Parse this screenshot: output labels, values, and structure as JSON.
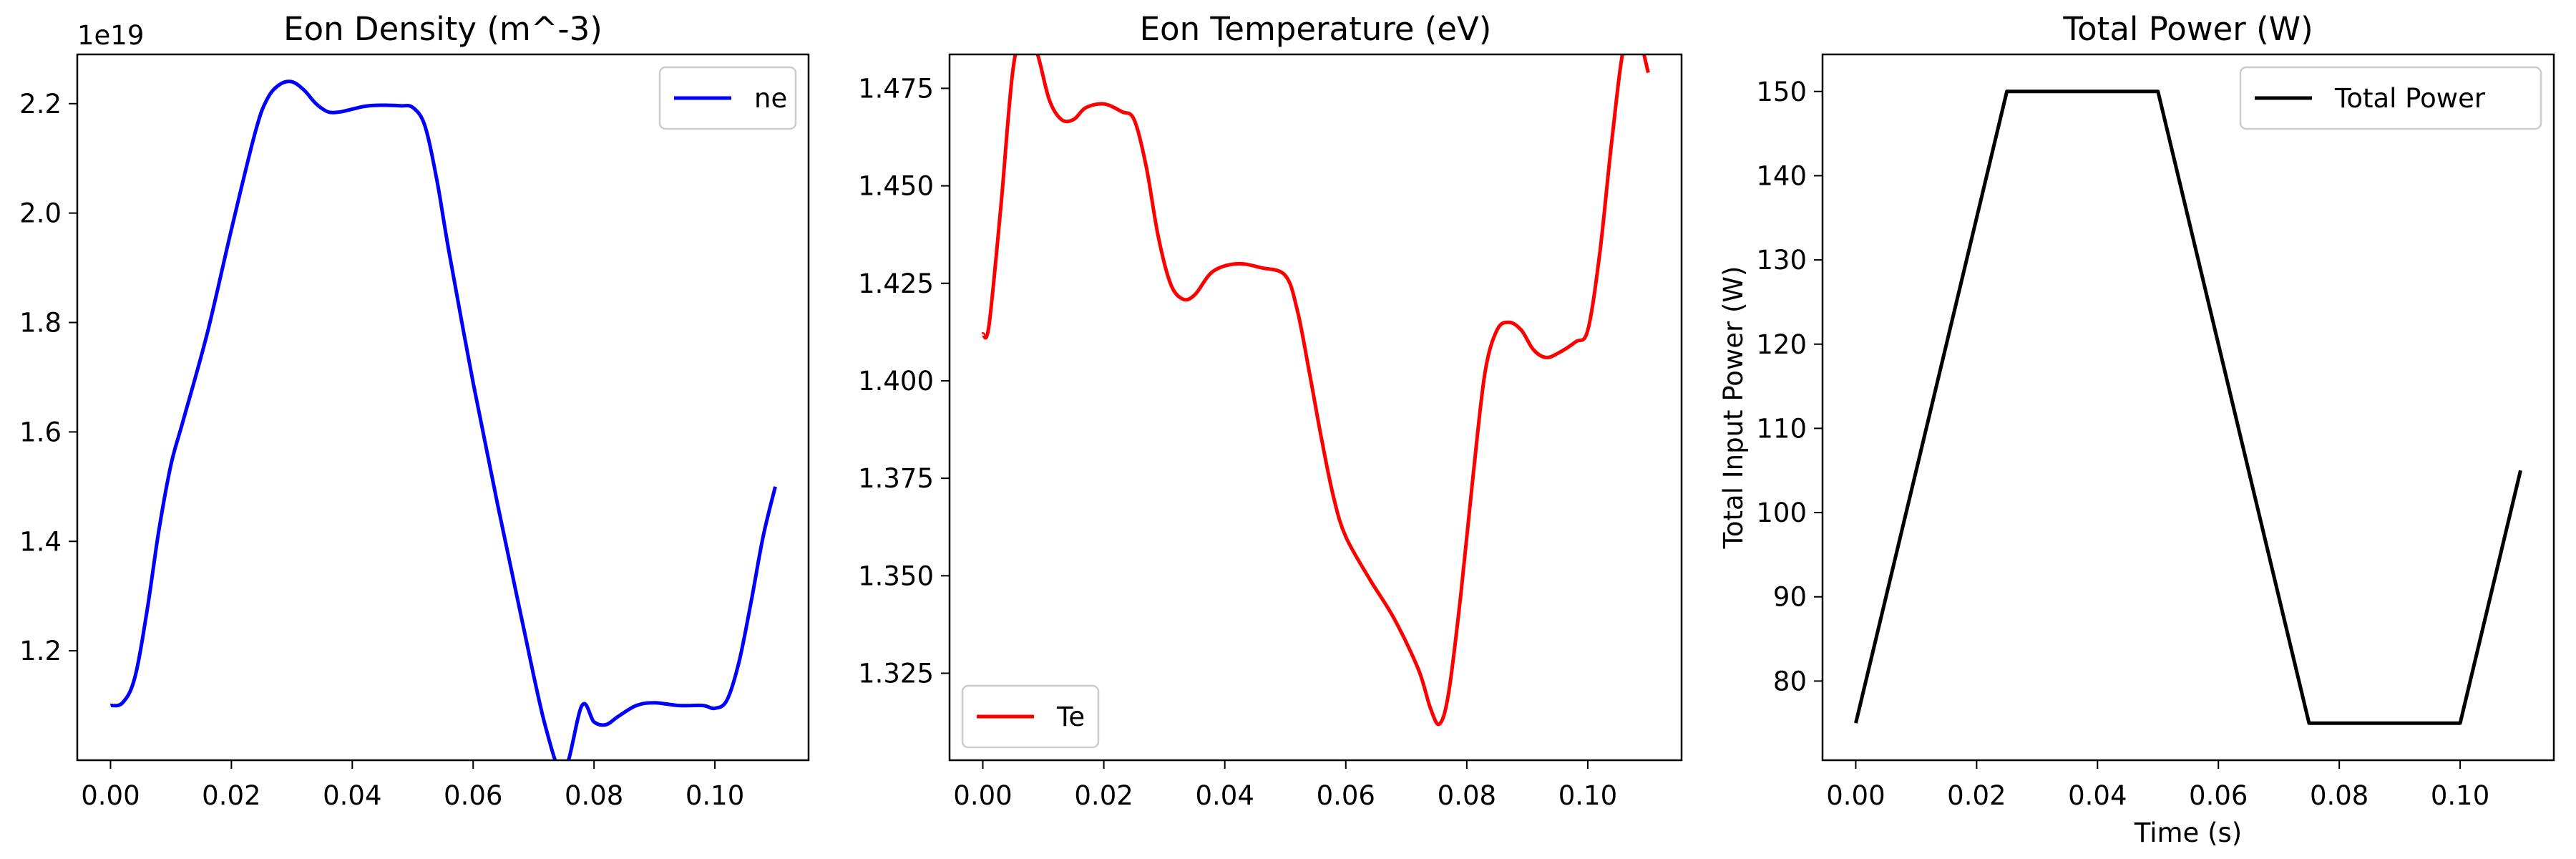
{
  "chart_data": [
    {
      "type": "line",
      "title": "Eon Density (m^-3)",
      "xlabel": "",
      "ylabel": "",
      "offset_text": "1e19",
      "xlim": [
        -0.0055,
        0.1155
      ],
      "ylim": [
        1.0,
        2.29
      ],
      "xticks": [
        0.0,
        0.02,
        0.04,
        0.06,
        0.08,
        0.1
      ],
      "xtick_labels": [
        "0.00",
        "0.02",
        "0.04",
        "0.06",
        "0.08",
        "0.10"
      ],
      "yticks": [
        1.2,
        1.4,
        1.6,
        1.8,
        2.0,
        2.2
      ],
      "ytick_labels": [
        "1.2",
        "1.4",
        "1.6",
        "1.8",
        "2.0",
        "2.2"
      ],
      "legend_position": "upper right",
      "series": [
        {
          "name": "ne",
          "color": "#0000ff",
          "x": [
            0.0,
            0.002,
            0.004,
            0.006,
            0.008,
            0.01,
            0.012,
            0.016,
            0.02,
            0.024,
            0.026,
            0.028,
            0.03,
            0.032,
            0.034,
            0.036,
            0.038,
            0.04,
            0.042,
            0.044,
            0.046,
            0.048,
            0.05,
            0.052,
            0.054,
            0.056,
            0.06,
            0.064,
            0.068,
            0.072,
            0.075,
            0.078,
            0.08,
            0.082,
            0.084,
            0.087,
            0.09,
            0.094,
            0.098,
            0.1,
            0.102,
            0.104,
            0.106,
            0.108,
            0.11
          ],
          "y": [
            1.1,
            1.105,
            1.15,
            1.27,
            1.42,
            1.54,
            1.62,
            1.78,
            1.97,
            2.15,
            2.21,
            2.235,
            2.24,
            2.225,
            2.2,
            2.185,
            2.185,
            2.19,
            2.195,
            2.197,
            2.197,
            2.196,
            2.193,
            2.16,
            2.06,
            1.93,
            1.69,
            1.47,
            1.26,
            1.06,
            0.98,
            1.1,
            1.07,
            1.065,
            1.08,
            1.1,
            1.105,
            1.1,
            1.1,
            1.095,
            1.11,
            1.18,
            1.29,
            1.41,
            1.5
          ]
        }
      ]
    },
    {
      "type": "line",
      "title": "Eon Temperature (eV)",
      "xlabel": "",
      "ylabel": "",
      "xlim": [
        -0.0055,
        0.1155
      ],
      "ylim": [
        1.3027,
        1.4837
      ],
      "xticks": [
        0.0,
        0.02,
        0.04,
        0.06,
        0.08,
        0.1
      ],
      "xtick_labels": [
        "0.00",
        "0.02",
        "0.04",
        "0.06",
        "0.08",
        "0.10"
      ],
      "yticks": [
        1.325,
        1.35,
        1.375,
        1.4,
        1.425,
        1.45,
        1.475
      ],
      "ytick_labels": [
        "1.325",
        "1.350",
        "1.375",
        "1.400",
        "1.425",
        "1.450",
        "1.475"
      ],
      "legend_position": "lower left",
      "series": [
        {
          "name": "Te",
          "color": "#ff0000",
          "x": [
            0.0,
            0.001,
            0.003,
            0.005,
            0.007,
            0.009,
            0.011,
            0.013,
            0.015,
            0.017,
            0.02,
            0.023,
            0.025,
            0.027,
            0.029,
            0.031,
            0.033,
            0.035,
            0.038,
            0.042,
            0.046,
            0.05,
            0.052,
            0.054,
            0.056,
            0.058,
            0.06,
            0.064,
            0.068,
            0.072,
            0.074,
            0.0755,
            0.077,
            0.079,
            0.081,
            0.083,
            0.085,
            0.087,
            0.089,
            0.091,
            0.093,
            0.095,
            0.098,
            0.1,
            0.102,
            0.104,
            0.106,
            0.108,
            0.11
          ],
          "y": [
            1.412,
            1.414,
            1.445,
            1.48,
            1.491,
            1.484,
            1.472,
            1.467,
            1.467,
            1.47,
            1.471,
            1.469,
            1.467,
            1.455,
            1.437,
            1.425,
            1.421,
            1.422,
            1.428,
            1.43,
            1.429,
            1.427,
            1.418,
            1.402,
            1.385,
            1.37,
            1.36,
            1.349,
            1.339,
            1.326,
            1.316,
            1.312,
            1.32,
            1.345,
            1.375,
            1.402,
            1.413,
            1.415,
            1.413,
            1.408,
            1.406,
            1.407,
            1.41,
            1.413,
            1.433,
            1.462,
            1.486,
            1.49,
            1.479
          ]
        }
      ]
    },
    {
      "type": "line",
      "title": "Total Power (W)",
      "xlabel": "Time (s)",
      "ylabel": "Total Input Power (W)",
      "xlim": [
        -0.0055,
        0.1155
      ],
      "ylim": [
        70.6,
        154.4
      ],
      "xticks": [
        0.0,
        0.02,
        0.04,
        0.06,
        0.08,
        0.1
      ],
      "xtick_labels": [
        "0.00",
        "0.02",
        "0.04",
        "0.06",
        "0.08",
        "0.10"
      ],
      "yticks": [
        80,
        90,
        100,
        110,
        120,
        130,
        140,
        150
      ],
      "ytick_labels": [
        "80",
        "90",
        "100",
        "110",
        "120",
        "130",
        "140",
        "150"
      ],
      "legend_position": "upper right",
      "series": [
        {
          "name": "Total Power",
          "color": "#000000",
          "x": [
            0.0,
            0.025,
            0.05,
            0.075,
            0.1,
            0.11
          ],
          "y": [
            75,
            150,
            150,
            75,
            75,
            105
          ]
        }
      ]
    }
  ]
}
